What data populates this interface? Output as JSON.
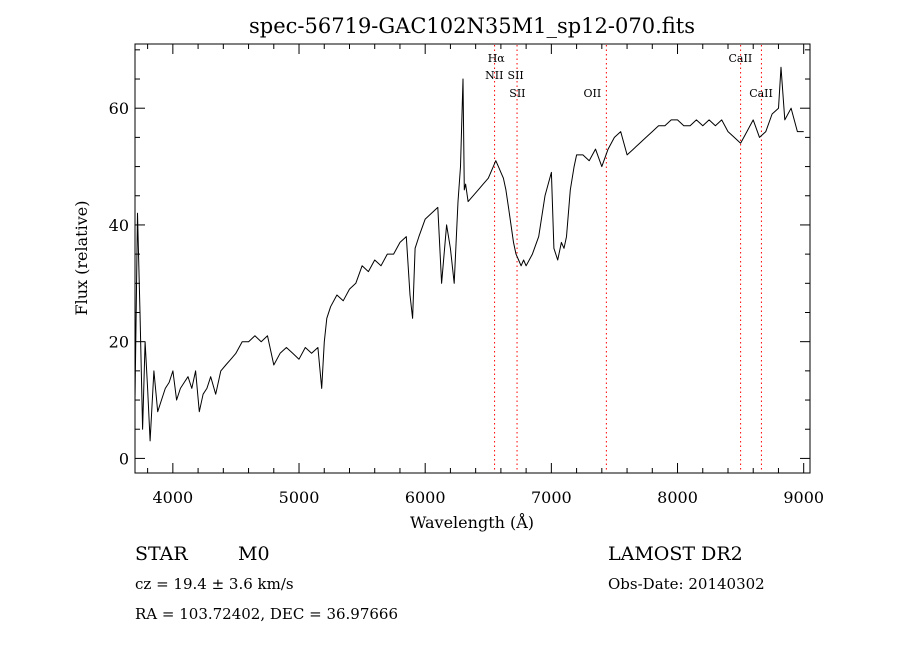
{
  "chart_data": {
    "type": "line",
    "title": "spec-56719-GAC102N35M1_sp12-070.fits",
    "xlabel": "Wavelength (Å)",
    "ylabel": "Flux (relative)",
    "xlim": [
      3700,
      9050
    ],
    "ylim": [
      -2.5,
      71
    ],
    "xticks": [
      4000,
      5000,
      6000,
      7000,
      8000,
      9000
    ],
    "yticks": [
      0,
      20,
      40,
      60
    ],
    "grid": false,
    "line_color": "#000000",
    "marker_color": "#ff0000",
    "spectral_lines": [
      {
        "label": "Hα",
        "wavelength": 6563,
        "row": 1
      },
      {
        "label": "NII",
        "wavelength": 6548,
        "row": 2
      },
      {
        "label": "SII",
        "wavelength": 6717,
        "row": 2
      },
      {
        "label": "SII",
        "wavelength": 6731,
        "row": 3
      },
      {
        "label": "OII",
        "wavelength": 7325,
        "row": 3
      },
      {
        "label": "CaII",
        "wavelength": 8498,
        "row": 1
      },
      {
        "label": "CaII",
        "wavelength": 8662,
        "row": 3
      }
    ],
    "marker_positions": [
      6550,
      6728,
      7436,
      8500,
      8665
    ],
    "series": [
      {
        "x": [
          3700,
          3720,
          3740,
          3760,
          3780,
          3800,
          3820,
          3850,
          3880,
          3910,
          3940,
          3970,
          4000,
          4030,
          4060,
          4090,
          4120,
          4150,
          4180,
          4210,
          4240,
          4270,
          4300,
          4340,
          4380,
          4420,
          4460,
          4500,
          4550,
          4600,
          4650,
          4700,
          4750,
          4800,
          4850,
          4900,
          4950,
          5000,
          5050,
          5100,
          5150,
          5180,
          5200,
          5220,
          5250,
          5300,
          5350,
          5400,
          5450,
          5500,
          5550,
          5600,
          5650,
          5700,
          5750,
          5800,
          5850,
          5880,
          5900,
          5920,
          5950,
          6000,
          6050,
          6100,
          6130,
          6150,
          6170,
          6200,
          6230,
          6260,
          6280,
          6300,
          6310,
          6320,
          6340,
          6380,
          6420,
          6460,
          6500,
          6540,
          6560,
          6580,
          6600,
          6620,
          6640,
          6660,
          6680,
          6700,
          6720,
          6740,
          6760,
          6780,
          6800,
          6850,
          6900,
          6950,
          7000,
          7020,
          7050,
          7080,
          7100,
          7120,
          7150,
          7180,
          7200,
          7250,
          7300,
          7350,
          7400,
          7450,
          7500,
          7550,
          7600,
          7650,
          7700,
          7750,
          7800,
          7850,
          7900,
          7950,
          8000,
          8050,
          8100,
          8150,
          8200,
          8250,
          8300,
          8350,
          8400,
          8450,
          8500,
          8550,
          8600,
          8650,
          8700,
          8750,
          8800,
          8820,
          8850,
          8900,
          8950,
          9000
        ],
        "y": [
          10,
          42,
          25,
          5,
          20,
          12,
          3,
          15,
          8,
          10,
          12,
          13,
          15,
          10,
          12,
          13,
          14,
          12,
          15,
          8,
          11,
          12,
          14,
          11,
          15,
          16,
          17,
          18,
          20,
          20,
          21,
          20,
          21,
          16,
          18,
          19,
          18,
          17,
          19,
          18,
          19,
          12,
          20,
          24,
          26,
          28,
          27,
          29,
          30,
          33,
          32,
          34,
          33,
          35,
          35,
          37,
          38,
          28,
          24,
          36,
          38,
          41,
          42,
          43,
          30,
          35,
          40,
          36,
          30,
          44,
          50,
          65,
          46,
          47,
          44,
          45,
          46,
          47,
          48,
          50,
          51,
          50,
          49,
          48,
          46,
          43,
          40,
          37,
          35,
          34,
          33,
          34,
          33,
          35,
          38,
          45,
          49,
          36,
          34,
          37,
          36,
          38,
          46,
          50,
          52,
          52,
          51,
          53,
          50,
          53,
          55,
          56,
          52,
          53,
          54,
          55,
          56,
          57,
          57,
          58,
          58,
          57,
          57,
          58,
          57,
          58,
          57,
          58,
          56,
          55,
          54,
          56,
          58,
          55,
          56,
          59,
          60,
          67,
          58,
          60,
          56,
          56
        ]
      }
    ]
  },
  "annotations": {
    "object_class": "STAR",
    "subclass": "M0",
    "survey": "LAMOST DR2",
    "cz": "cz = 19.4 ± 3.6 km/s",
    "obs_date": "Obs-Date: 20140302",
    "coords": "RA = 103.72402, DEC =  36.97666"
  }
}
